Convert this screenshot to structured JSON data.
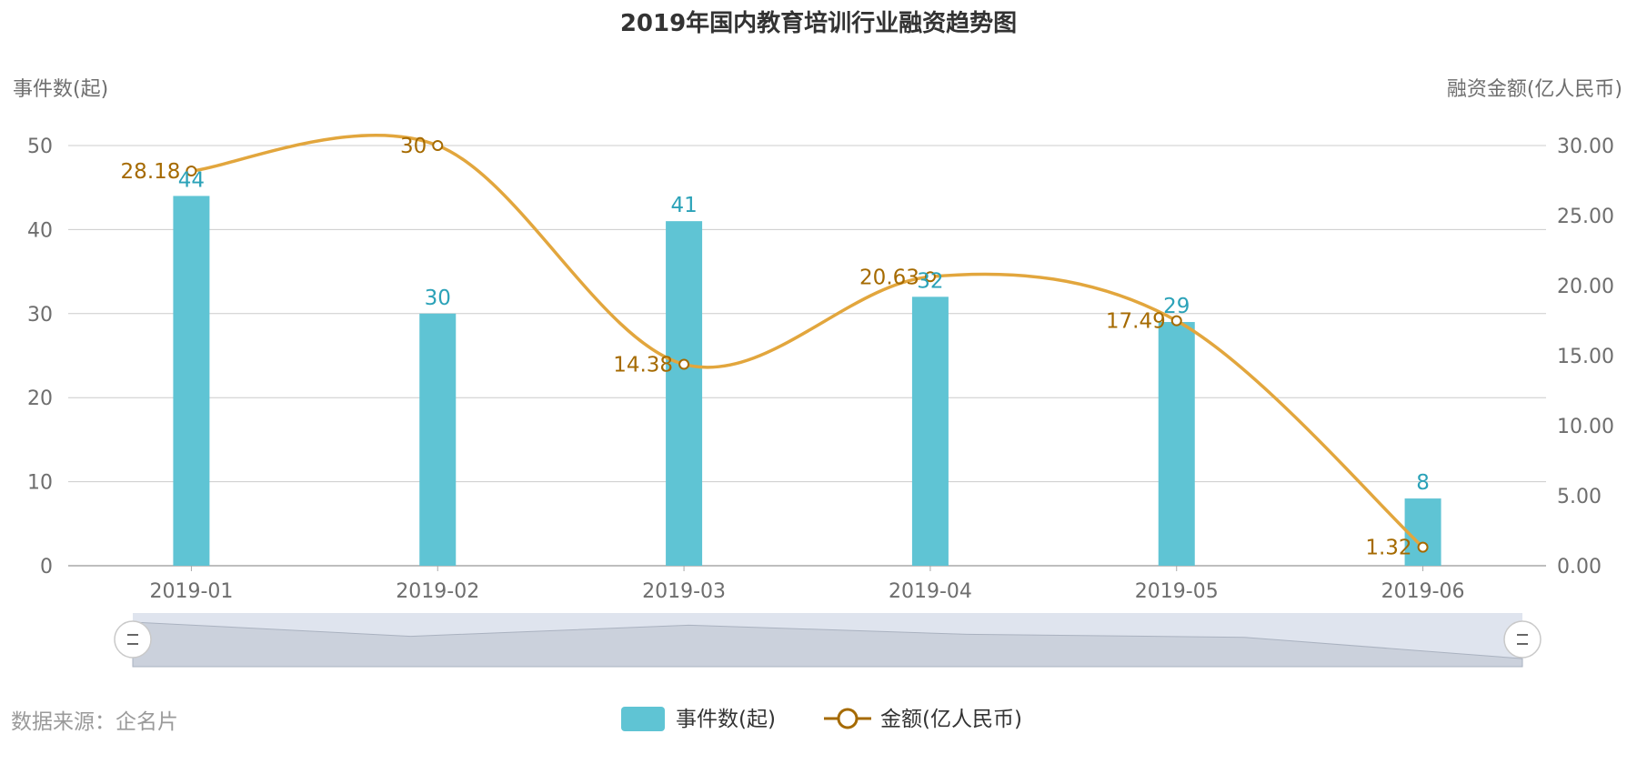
{
  "chart_data": {
    "type": "bar",
    "title": "2019年国内教育培训行业融资趋势图",
    "categories": [
      "2019-01",
      "2019-02",
      "2019-03",
      "2019-04",
      "2019-05",
      "2019-06"
    ],
    "y_left": {
      "name": "事件数(起)",
      "min": 0,
      "max": 50,
      "ticks": [
        "0",
        "10",
        "20",
        "30",
        "40",
        "50"
      ]
    },
    "y_right": {
      "name": "融资金额(亿人民币)",
      "min": 0,
      "max": 30,
      "ticks": [
        "0.00",
        "5.00",
        "10.00",
        "15.00",
        "20.00",
        "25.00",
        "30.00"
      ]
    },
    "series": [
      {
        "name": "事件数(起)",
        "type": "bar",
        "axis": "left",
        "values": [
          44,
          30,
          41,
          32,
          29,
          8
        ],
        "labels": [
          "44",
          "30",
          "41",
          "32",
          "29",
          "8"
        ]
      },
      {
        "name": "金额(亿人民币)",
        "type": "line",
        "axis": "right",
        "smooth": true,
        "values": [
          28.18,
          30,
          14.38,
          20.63,
          17.49,
          1.32
        ],
        "labels": [
          "28.18",
          "30",
          "14.38",
          "20.63",
          "17.49",
          "1.32"
        ]
      }
    ],
    "grid": true,
    "legend_position": "bottom-center",
    "colors": {
      "bar": "#5fc4d4",
      "line": "#e2a63d",
      "bar_label": "#2ba2b8",
      "line_label": "#a56a00",
      "grid": "#cccccc",
      "axis_text": "#6e6e6e"
    }
  },
  "source_note": "数据来源：企名片",
  "datazoom": {
    "handle_icon": "drag-handle-icon"
  }
}
